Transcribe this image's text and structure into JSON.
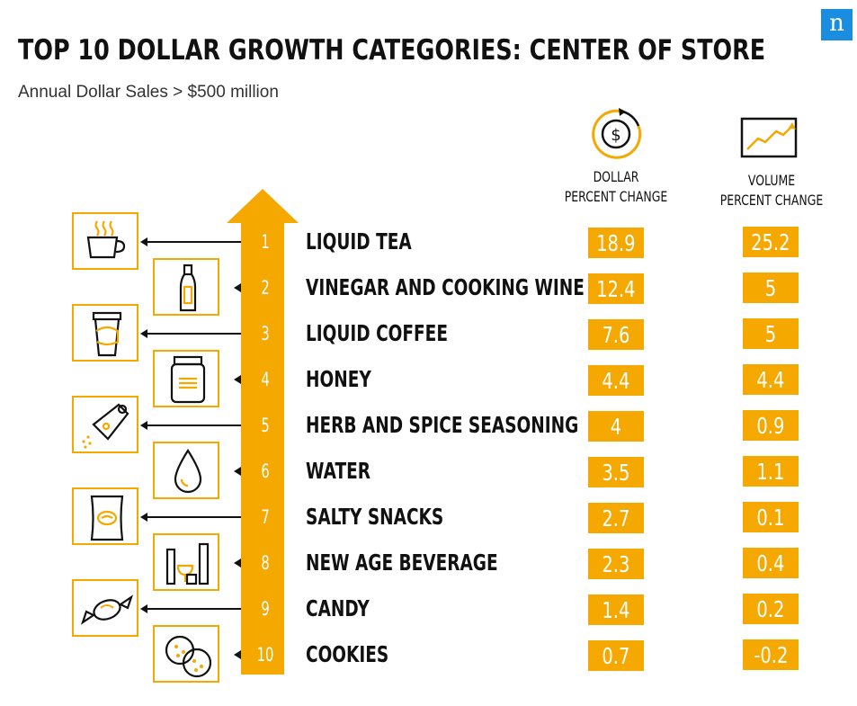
{
  "brand": {
    "logo_letter": "n",
    "accent": "#f5a800",
    "logo_color": "#1a8de0"
  },
  "chart_data": {
    "type": "table",
    "title": "TOP 10 DOLLAR GROWTH CATEGORIES: CENTER OF STORE",
    "subtitle": "Annual Dollar Sales > $500 million",
    "columns": [
      "DOLLAR PERCENT CHANGE",
      "VOLUME PERCENT CHANGE"
    ],
    "column_heads": {
      "dollar": [
        "DOLLAR",
        "PERCENT CHANGE"
      ],
      "volume": [
        "VOLUME",
        "PERCENT CHANGE"
      ]
    },
    "rows": [
      {
        "rank": "1",
        "category": "LIQUID TEA",
        "dollar": "18.9",
        "volume": "25.2",
        "icon": "tea-cup-icon"
      },
      {
        "rank": "2",
        "category": "VINEGAR AND COOKING WINE",
        "dollar": "12.4",
        "volume": "5",
        "icon": "bottle-icon"
      },
      {
        "rank": "3",
        "category": "LIQUID COFFEE",
        "dollar": "7.6",
        "volume": "5",
        "icon": "coffee-cup-icon"
      },
      {
        "rank": "4",
        "category": "HONEY",
        "dollar": "4.4",
        "volume": "4.4",
        "icon": "honey-jar-icon"
      },
      {
        "rank": "5",
        "category": "HERB AND SPICE SEASONING",
        "dollar": "4",
        "volume": "0.9",
        "icon": "spice-grinder-icon"
      },
      {
        "rank": "6",
        "category": "WATER",
        "dollar": "3.5",
        "volume": "1.1",
        "icon": "water-drop-icon"
      },
      {
        "rank": "7",
        "category": "SALTY SNACKS",
        "dollar": "2.7",
        "volume": "0.1",
        "icon": "snack-bag-icon"
      },
      {
        "rank": "8",
        "category": "NEW AGE BEVERAGE",
        "dollar": "2.3",
        "volume": "0.4",
        "icon": "beverages-icon"
      },
      {
        "rank": "9",
        "category": "CANDY",
        "dollar": "1.4",
        "volume": "0.2",
        "icon": "candy-icon"
      },
      {
        "rank": "10",
        "category": "COOKIES",
        "dollar": "0.7",
        "volume": "-0.2",
        "icon": "cookies-icon"
      }
    ]
  }
}
